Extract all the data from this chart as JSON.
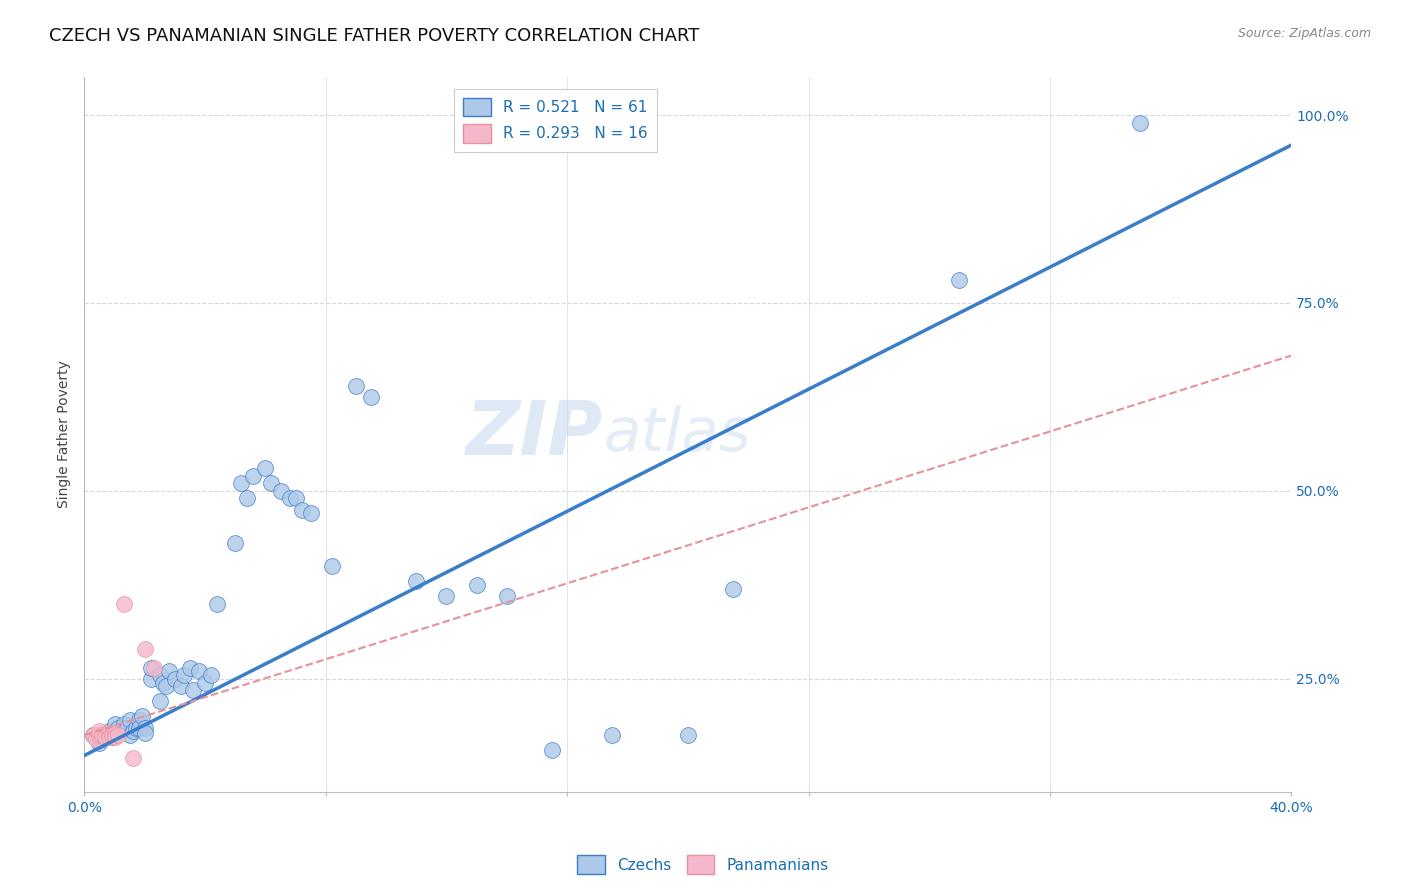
{
  "title": "CZECH VS PANAMANIAN SINGLE FATHER POVERTY CORRELATION CHART",
  "source": "Source: ZipAtlas.com",
  "ylabel": "Single Father Poverty",
  "xlim": [
    0.0,
    0.4
  ],
  "ylim": [
    0.1,
    1.05
  ],
  "xticks": [
    0.0,
    0.08,
    0.16,
    0.24,
    0.32,
    0.4
  ],
  "xtick_labels": [
    "0.0%",
    "",
    "",
    "",
    "",
    "40.0%"
  ],
  "ytick_labels": [
    "25.0%",
    "50.0%",
    "75.0%",
    "100.0%"
  ],
  "ytick_vals": [
    0.25,
    0.5,
    0.75,
    1.0
  ],
  "czech_R": 0.521,
  "czech_N": 61,
  "panama_R": 0.293,
  "panama_N": 16,
  "czech_color": "#adc8e8",
  "panama_color": "#f5b8cb",
  "trendline_czech_color": "#3a7dc9",
  "trendline_panama_color": "#e8909e",
  "watermark_zip": "ZIP",
  "watermark_atlas": "atlas",
  "background_color": "#ffffff",
  "grid_color": "#d8d8d8",
  "legend_text_color": "#1a6eb5",
  "title_fontsize": 13,
  "axis_label_fontsize": 10,
  "tick_fontsize": 10,
  "legend_fontsize": 11,
  "czech_scatter": [
    [
      0.003,
      0.175
    ],
    [
      0.005,
      0.165
    ],
    [
      0.006,
      0.17
    ],
    [
      0.007,
      0.175
    ],
    [
      0.008,
      0.18
    ],
    [
      0.009,
      0.172
    ],
    [
      0.01,
      0.19
    ],
    [
      0.01,
      0.175
    ],
    [
      0.011,
      0.185
    ],
    [
      0.012,
      0.18
    ],
    [
      0.013,
      0.19
    ],
    [
      0.014,
      0.185
    ],
    [
      0.015,
      0.175
    ],
    [
      0.015,
      0.195
    ],
    [
      0.016,
      0.18
    ],
    [
      0.017,
      0.185
    ],
    [
      0.018,
      0.195
    ],
    [
      0.018,
      0.185
    ],
    [
      0.019,
      0.2
    ],
    [
      0.02,
      0.185
    ],
    [
      0.02,
      0.178
    ],
    [
      0.022,
      0.25
    ],
    [
      0.022,
      0.265
    ],
    [
      0.025,
      0.22
    ],
    [
      0.025,
      0.255
    ],
    [
      0.026,
      0.245
    ],
    [
      0.027,
      0.24
    ],
    [
      0.028,
      0.26
    ],
    [
      0.03,
      0.25
    ],
    [
      0.032,
      0.24
    ],
    [
      0.033,
      0.255
    ],
    [
      0.035,
      0.265
    ],
    [
      0.036,
      0.235
    ],
    [
      0.038,
      0.26
    ],
    [
      0.04,
      0.245
    ],
    [
      0.042,
      0.255
    ],
    [
      0.044,
      0.35
    ],
    [
      0.05,
      0.43
    ],
    [
      0.052,
      0.51
    ],
    [
      0.054,
      0.49
    ],
    [
      0.056,
      0.52
    ],
    [
      0.06,
      0.53
    ],
    [
      0.062,
      0.51
    ],
    [
      0.065,
      0.5
    ],
    [
      0.068,
      0.49
    ],
    [
      0.07,
      0.49
    ],
    [
      0.072,
      0.475
    ],
    [
      0.075,
      0.47
    ],
    [
      0.082,
      0.4
    ],
    [
      0.09,
      0.64
    ],
    [
      0.095,
      0.625
    ],
    [
      0.11,
      0.38
    ],
    [
      0.12,
      0.36
    ],
    [
      0.13,
      0.375
    ],
    [
      0.14,
      0.36
    ],
    [
      0.155,
      0.155
    ],
    [
      0.175,
      0.175
    ],
    [
      0.2,
      0.175
    ],
    [
      0.215,
      0.37
    ],
    [
      0.29,
      0.78
    ],
    [
      0.35,
      0.99
    ]
  ],
  "panama_scatter": [
    [
      0.003,
      0.175
    ],
    [
      0.004,
      0.17
    ],
    [
      0.005,
      0.175
    ],
    [
      0.005,
      0.18
    ],
    [
      0.006,
      0.175
    ],
    [
      0.007,
      0.172
    ],
    [
      0.008,
      0.178
    ],
    [
      0.008,
      0.172
    ],
    [
      0.009,
      0.175
    ],
    [
      0.01,
      0.178
    ],
    [
      0.01,
      0.172
    ],
    [
      0.011,
      0.175
    ],
    [
      0.013,
      0.35
    ],
    [
      0.016,
      0.145
    ],
    [
      0.02,
      0.29
    ],
    [
      0.023,
      0.265
    ]
  ],
  "czech_trend_x0": 0.0,
  "czech_trend_y0": 0.148,
  "czech_trend_x1": 0.4,
  "czech_trend_y1": 0.96,
  "panama_trend_x0": 0.0,
  "panama_trend_y0": 0.175,
  "panama_trend_x1": 0.4,
  "panama_trend_y1": 0.68
}
